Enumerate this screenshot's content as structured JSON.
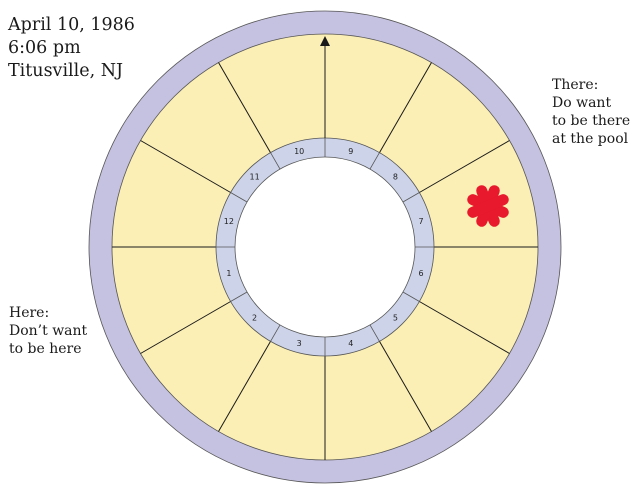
{
  "birth_info": {
    "date": "April 10, 1986",
    "time": "6:06 pm",
    "place": "Titusville, NJ"
  },
  "annotations": {
    "there": [
      "There:",
      "Do want",
      "to be there",
      "at the pool"
    ],
    "here": [
      "Here:",
      "Don’t want",
      "to be here"
    ]
  },
  "wheel": {
    "house_numbers": [
      "1",
      "2",
      "3",
      "4",
      "5",
      "6",
      "7",
      "8",
      "9",
      "10",
      "11",
      "12"
    ],
    "colors": {
      "outer_ring": "#c5c1e0",
      "house_fill": "#fbefb5",
      "inner_ring": "#cdd4ea",
      "center": "#ffffff",
      "lines": "#1a1a1a",
      "star": "#e8192c"
    },
    "arrow_label_icon": "up-arrow-icon",
    "marker_icon": "red-asterisk-icon"
  }
}
